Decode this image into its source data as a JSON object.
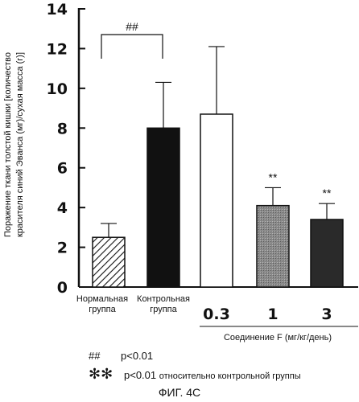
{
  "chart_data": {
    "type": "bar",
    "ylabel_lines": [
      "Поражение ткани толстой кишки [количество",
      "красителя синий Эванса (мг)/сухая масса (г)]"
    ],
    "ylim": [
      0,
      14
    ],
    "yticks": [
      0,
      2,
      4,
      6,
      8,
      10,
      12,
      14
    ],
    "categories": [
      {
        "label_lines": [
          "Нормальная",
          "группа"
        ],
        "value": 2.5,
        "error": 0.7,
        "fill": "hatch",
        "marker": ""
      },
      {
        "label_lines": [
          "Контрольная",
          "группа"
        ],
        "value": 8.0,
        "error": 2.3,
        "fill": "#111111",
        "marker": ""
      },
      {
        "label_lines": [
          "0.3"
        ],
        "value": 8.7,
        "error": 3.4,
        "fill": "#ffffff",
        "marker": ""
      },
      {
        "label_lines": [
          "1"
        ],
        "value": 4.1,
        "error": 0.9,
        "fill": "#8a8a8a",
        "marker": "**"
      },
      {
        "label_lines": [
          "3"
        ],
        "value": 3.4,
        "error": 0.8,
        "fill": "#2a2a2a",
        "marker": "**"
      }
    ],
    "group_label": "Соединение F (мг/кг/день)",
    "bracket_label": "##"
  },
  "legend": {
    "hash_symbol": "##",
    "hash_text": "p<0.01",
    "star_symbol": "✻✻",
    "star_text": "p<0.01",
    "star_suffix": "относительно контрольной группы"
  },
  "figure_caption": "ФИГ. 4С"
}
